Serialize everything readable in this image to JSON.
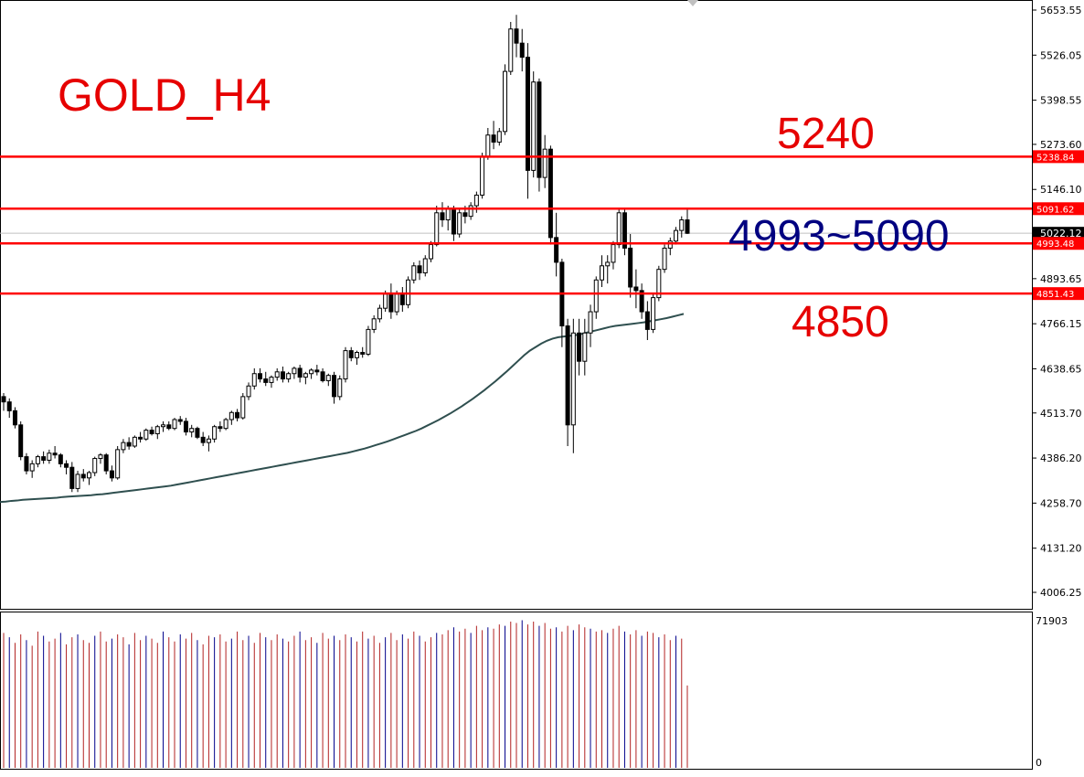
{
  "chart_data": {
    "type": "candlestick",
    "symbol_title": "GOLD_H4",
    "price_axis": {
      "ticks": [
        "5653.55",
        "5526.05",
        "5398.55",
        "5273.60",
        "5146.10",
        "5022.12",
        "4893.65",
        "4766.15",
        "4638.65",
        "4513.70",
        "4386.20",
        "4258.70",
        "4131.20",
        "4006.25"
      ],
      "range": [
        3960,
        5665
      ]
    },
    "volume_axis": {
      "max_label": "71903",
      "zero_label": "0"
    },
    "current_price": "5022.12",
    "levels": [
      {
        "value": 5238.84,
        "label": "5238.84"
      },
      {
        "value": 5091.62,
        "label": "5091.62"
      },
      {
        "value": 4993.48,
        "label": "4993.48"
      },
      {
        "value": 4851.43,
        "label": "4851.43"
      }
    ],
    "annotations": [
      {
        "text": "5240",
        "color": "#e60000"
      },
      {
        "text": "4993~5090",
        "color": "#000080"
      },
      {
        "text": "4850",
        "color": "#e60000"
      }
    ],
    "candles": [
      [
        4560,
        4570,
        4520,
        4545
      ],
      [
        4545,
        4555,
        4500,
        4520
      ],
      [
        4520,
        4530,
        4470,
        4480
      ],
      [
        4480,
        4490,
        4380,
        4390
      ],
      [
        4390,
        4400,
        4340,
        4350
      ],
      [
        4350,
        4380,
        4330,
        4370
      ],
      [
        4370,
        4395,
        4360,
        4390
      ],
      [
        4390,
        4405,
        4370,
        4380
      ],
      [
        4380,
        4410,
        4370,
        4400
      ],
      [
        4400,
        4420,
        4385,
        4395
      ],
      [
        4395,
        4400,
        4360,
        4370
      ],
      [
        4370,
        4380,
        4340,
        4360
      ],
      [
        4360,
        4375,
        4290,
        4300
      ],
      [
        4300,
        4350,
        4290,
        4340
      ],
      [
        4340,
        4355,
        4320,
        4330
      ],
      [
        4330,
        4350,
        4310,
        4345
      ],
      [
        4345,
        4390,
        4335,
        4385
      ],
      [
        4385,
        4400,
        4370,
        4395
      ],
      [
        4395,
        4400,
        4340,
        4350
      ],
      [
        4350,
        4365,
        4320,
        4330
      ],
      [
        4330,
        4420,
        4325,
        4410
      ],
      [
        4410,
        4440,
        4400,
        4430
      ],
      [
        4430,
        4445,
        4410,
        4420
      ],
      [
        4420,
        4450,
        4415,
        4445
      ],
      [
        4445,
        4460,
        4430,
        4440
      ],
      [
        4440,
        4470,
        4435,
        4465
      ],
      [
        4465,
        4475,
        4450,
        4455
      ],
      [
        4455,
        4480,
        4440,
        4475
      ],
      [
        4475,
        4490,
        4460,
        4480
      ],
      [
        4480,
        4490,
        4465,
        4470
      ],
      [
        4470,
        4500,
        4465,
        4495
      ],
      [
        4495,
        4505,
        4480,
        4490
      ],
      [
        4490,
        4500,
        4450,
        4460
      ],
      [
        4460,
        4480,
        4445,
        4470
      ],
      [
        4470,
        4475,
        4440,
        4445
      ],
      [
        4445,
        4460,
        4420,
        4430
      ],
      [
        4430,
        4450,
        4405,
        4440
      ],
      [
        4440,
        4480,
        4430,
        4475
      ],
      [
        4475,
        4490,
        4460,
        4470
      ],
      [
        4470,
        4500,
        4465,
        4495
      ],
      [
        4495,
        4520,
        4480,
        4515
      ],
      [
        4515,
        4525,
        4490,
        4500
      ],
      [
        4500,
        4570,
        4495,
        4560
      ],
      [
        4560,
        4600,
        4550,
        4590
      ],
      [
        4590,
        4640,
        4580,
        4625
      ],
      [
        4625,
        4640,
        4600,
        4610
      ],
      [
        4610,
        4630,
        4590,
        4600
      ],
      [
        4600,
        4620,
        4585,
        4615
      ],
      [
        4615,
        4640,
        4605,
        4630
      ],
      [
        4630,
        4645,
        4600,
        4610
      ],
      [
        4610,
        4630,
        4600,
        4625
      ],
      [
        4625,
        4645,
        4610,
        4640
      ],
      [
        4640,
        4650,
        4600,
        4615
      ],
      [
        4615,
        4630,
        4595,
        4625
      ],
      [
        4625,
        4640,
        4610,
        4635
      ],
      [
        4635,
        4650,
        4620,
        4630
      ],
      [
        4630,
        4640,
        4600,
        4605
      ],
      [
        4605,
        4625,
        4590,
        4620
      ],
      [
        4620,
        4630,
        4540,
        4560
      ],
      [
        4560,
        4620,
        4550,
        4610
      ],
      [
        4610,
        4700,
        4600,
        4690
      ],
      [
        4690,
        4700,
        4660,
        4670
      ],
      [
        4670,
        4690,
        4650,
        4685
      ],
      [
        4685,
        4700,
        4670,
        4680
      ],
      [
        4680,
        4760,
        4675,
        4750
      ],
      [
        4750,
        4790,
        4740,
        4780
      ],
      [
        4780,
        4820,
        4770,
        4810
      ],
      [
        4810,
        4860,
        4800,
        4850
      ],
      [
        4850,
        4880,
        4780,
        4800
      ],
      [
        4800,
        4860,
        4790,
        4850
      ],
      [
        4850,
        4870,
        4800,
        4820
      ],
      [
        4820,
        4900,
        4810,
        4890
      ],
      [
        4890,
        4940,
        4880,
        4930
      ],
      [
        4930,
        4945,
        4890,
        4910
      ],
      [
        4910,
        4960,
        4900,
        4950
      ],
      [
        4950,
        5000,
        4940,
        4990
      ],
      [
        4990,
        5100,
        4985,
        5080
      ],
      [
        5080,
        5110,
        5040,
        5060
      ],
      [
        5060,
        5100,
        5030,
        5090
      ],
      [
        5090,
        5100,
        5000,
        5020
      ],
      [
        5020,
        5090,
        5010,
        5080
      ],
      [
        5080,
        5100,
        5050,
        5070
      ],
      [
        5070,
        5110,
        5060,
        5100
      ],
      [
        5100,
        5140,
        5080,
        5130
      ],
      [
        5130,
        5250,
        5120,
        5240
      ],
      [
        5240,
        5320,
        5230,
        5300
      ],
      [
        5300,
        5340,
        5260,
        5280
      ],
      [
        5280,
        5320,
        5270,
        5310
      ],
      [
        5310,
        5500,
        5300,
        5480
      ],
      [
        5480,
        5620,
        5470,
        5600
      ],
      [
        5600,
        5640,
        5520,
        5560
      ],
      [
        5560,
        5600,
        5480,
        5520
      ],
      [
        5520,
        5560,
        5120,
        5200
      ],
      [
        5200,
        5480,
        5180,
        5450
      ],
      [
        5450,
        5460,
        5140,
        5180
      ],
      [
        5180,
        5300,
        5150,
        5260
      ],
      [
        5260,
        5270,
        4990,
        5010
      ],
      [
        5010,
        5080,
        4900,
        4940
      ],
      [
        4940,
        4950,
        4700,
        4760
      ],
      [
        4760,
        4780,
        4420,
        4480
      ],
      [
        4480,
        4780,
        4400,
        4740
      ],
      [
        4740,
        4780,
        4620,
        4660
      ],
      [
        4660,
        4780,
        4620,
        4740
      ],
      [
        4740,
        4820,
        4700,
        4800
      ],
      [
        4800,
        4900,
        4780,
        4890
      ],
      [
        4890,
        4960,
        4870,
        4930
      ],
      [
        4930,
        4960,
        4880,
        4940
      ],
      [
        4940,
        5000,
        4920,
        4990
      ],
      [
        4990,
        5090,
        4980,
        5080
      ],
      [
        5080,
        5090,
        4960,
        4980
      ],
      [
        4980,
        5020,
        4840,
        4870
      ],
      [
        4870,
        4920,
        4810,
        4860
      ],
      [
        4860,
        4880,
        4780,
        4800
      ],
      [
        4800,
        4830,
        4720,
        4750
      ],
      [
        4750,
        4850,
        4740,
        4840
      ],
      [
        4840,
        4930,
        4830,
        4920
      ],
      [
        4920,
        4990,
        4910,
        4980
      ],
      [
        4980,
        5010,
        4960,
        5000
      ],
      [
        5000,
        5040,
        4990,
        5030
      ],
      [
        5030,
        5070,
        5010,
        5060
      ],
      [
        5060,
        5090,
        5020,
        5022
      ]
    ],
    "ma": [
      4262,
      4263,
      4265,
      4266,
      4268,
      4269,
      4270,
      4271,
      4272,
      4273,
      4274,
      4276,
      4277,
      4278,
      4279,
      4280,
      4281,
      4283,
      4284,
      4286,
      4288,
      4290,
      4292,
      4294,
      4296,
      4298,
      4300,
      4302,
      4304,
      4306,
      4308,
      4311,
      4314,
      4317,
      4320,
      4323,
      4326,
      4329,
      4332,
      4335,
      4338,
      4341,
      4344,
      4347,
      4350,
      4353,
      4356,
      4359,
      4362,
      4365,
      4368,
      4371,
      4374,
      4377,
      4380,
      4383,
      4386,
      4389,
      4392,
      4395,
      4398,
      4401,
      4405,
      4409,
      4413,
      4418,
      4423,
      4428,
      4433,
      4439,
      4445,
      4451,
      4457,
      4463,
      4470,
      4478,
      4486,
      4494,
      4503,
      4512,
      4522,
      4532,
      4543,
      4554,
      4566,
      4578,
      4591,
      4604,
      4618,
      4632,
      4647,
      4662,
      4677,
      4690,
      4700,
      4710,
      4718,
      4724,
      4728,
      4730,
      4732,
      4734,
      4737,
      4741,
      4745,
      4749,
      4753,
      4757,
      4760,
      4762,
      4764,
      4766,
      4768,
      4770,
      4773,
      4776,
      4779,
      4782,
      4786,
      4790,
      4794
    ],
    "volumes": [
      95,
      92,
      88,
      94,
      90,
      86,
      96,
      93,
      89,
      91,
      95,
      87,
      92,
      94,
      90,
      88,
      93,
      96,
      89,
      91,
      94,
      92,
      87,
      95,
      90,
      93,
      91,
      88,
      96,
      92,
      89,
      94,
      91,
      95,
      90,
      87,
      93,
      92,
      94,
      89,
      91,
      96,
      90,
      93,
      88,
      95,
      92,
      90,
      94,
      91,
      89,
      93,
      96,
      90,
      92,
      88,
      95,
      91,
      93,
      90,
      94,
      92,
      89,
      96,
      91,
      93,
      88,
      92,
      95,
      90,
      94,
      91,
      96,
      93,
      89,
      92,
      95,
      94,
      97,
      99,
      96,
      98,
      95,
      100,
      97,
      99,
      98,
      101,
      100,
      103,
      102,
      104,
      101,
      103,
      100,
      102,
      98,
      99,
      96,
      100,
      97,
      101,
      99,
      98,
      96,
      97,
      95,
      98,
      100,
      96,
      94,
      97,
      93,
      96,
      95,
      92,
      94,
      90,
      93,
      91,
      58
    ]
  }
}
